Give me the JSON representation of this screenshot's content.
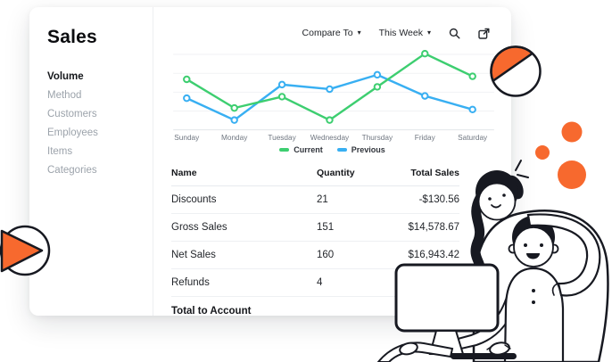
{
  "sidebar": {
    "title": "Sales",
    "items": [
      {
        "label": "Volume",
        "active": true
      },
      {
        "label": "Method",
        "active": false
      },
      {
        "label": "Customers",
        "active": false
      },
      {
        "label": "Employees",
        "active": false
      },
      {
        "label": "Items",
        "active": false
      },
      {
        "label": "Categories",
        "active": false
      }
    ]
  },
  "toolbar": {
    "compare_label": "Compare To",
    "period_label": "This Week",
    "icons": [
      "search-icon",
      "export-icon"
    ]
  },
  "chart_data": {
    "type": "line",
    "title": "",
    "xlabel": "",
    "ylabel": "",
    "categories": [
      "Sunday",
      "Monday",
      "Tuesday",
      "Wednesday",
      "Thursday",
      "Friday",
      "Saturday"
    ],
    "series": [
      {
        "name": "Current",
        "color": "#3DCE70",
        "values": [
          67,
          29,
          44,
          13,
          57,
          101,
          71
        ]
      },
      {
        "name": "Previous",
        "color": "#38AFF2",
        "values": [
          42,
          13,
          60,
          54,
          73,
          45,
          27
        ]
      }
    ],
    "ylim": [
      0,
      110
    ],
    "grid": true,
    "grid_color": "#F1F2F4",
    "axis_color": "#E3E6EA",
    "label_color": "#6F7680",
    "legend_position": "bottom",
    "marker": "hollow-circle"
  },
  "table": {
    "columns": [
      "Name",
      "Quantity",
      "Total Sales"
    ],
    "rows": [
      {
        "name": "Discounts",
        "quantity": "21",
        "total": "-$130.56"
      },
      {
        "name": "Gross Sales",
        "quantity": "151",
        "total": "$14,578.67"
      },
      {
        "name": "Net Sales",
        "quantity": "160",
        "total": "$16,943.42"
      },
      {
        "name": "Refunds",
        "quantity": "4",
        "total": ""
      }
    ],
    "footer": "Total to Account"
  },
  "decor": {
    "orange": "#F7692E",
    "ink": "#171921"
  }
}
